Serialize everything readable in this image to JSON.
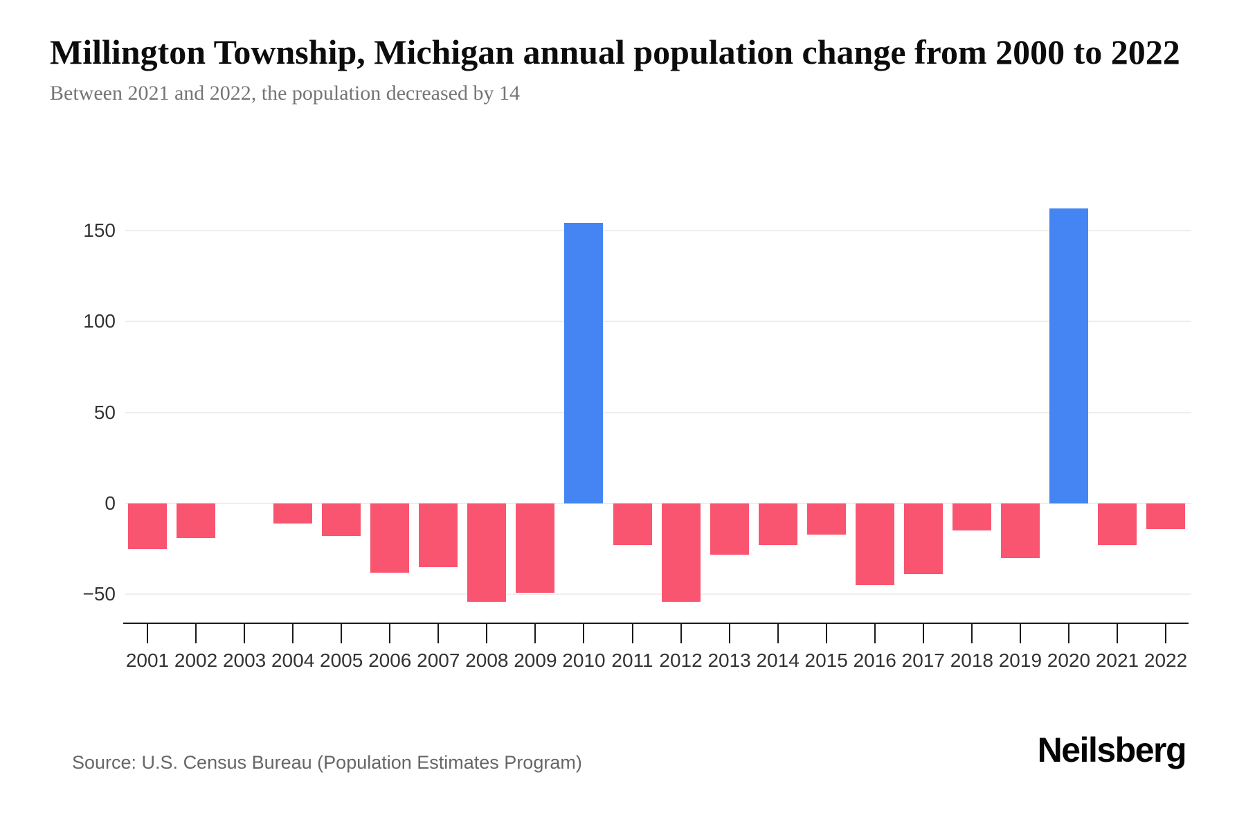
{
  "header": {
    "title": "Millington Township, Michigan annual population change from 2000 to 2022",
    "subtitle": "Between 2021 and 2022, the population decreased by 14"
  },
  "footer": {
    "source": "Source: U.S. Census Bureau (Population Estimates Program)",
    "brand": "Neilsberg"
  },
  "chart_data": {
    "type": "bar",
    "title": "Millington Township, Michigan annual population change from 2000 to 2022",
    "subtitle": "Between 2021 and 2022, the population decreased by 14",
    "xlabel": "",
    "ylabel": "",
    "categories": [
      "2001",
      "2002",
      "2003",
      "2004",
      "2005",
      "2006",
      "2007",
      "2008",
      "2009",
      "2010",
      "2011",
      "2012",
      "2013",
      "2014",
      "2015",
      "2016",
      "2017",
      "2018",
      "2019",
      "2020",
      "2021",
      "2022"
    ],
    "values": [
      -25,
      -19,
      0,
      -11,
      -18,
      -38,
      -35,
      -54,
      -49,
      154,
      -23,
      -54,
      -28,
      -23,
      -17,
      -45,
      -39,
      -15,
      -30,
      162,
      -23,
      -14
    ],
    "yticks": [
      150,
      100,
      50,
      0,
      -50
    ],
    "ytick_labels": [
      "150",
      "100",
      "50",
      "0",
      "−50"
    ],
    "ylim": [
      -66,
      176
    ],
    "grid": true,
    "legend": "none",
    "colors": {
      "positive": "#4485f3",
      "negative": "#fa5570",
      "gridline": "#eeeeee",
      "axis": "#1a1a1a",
      "label": "#333333"
    }
  }
}
